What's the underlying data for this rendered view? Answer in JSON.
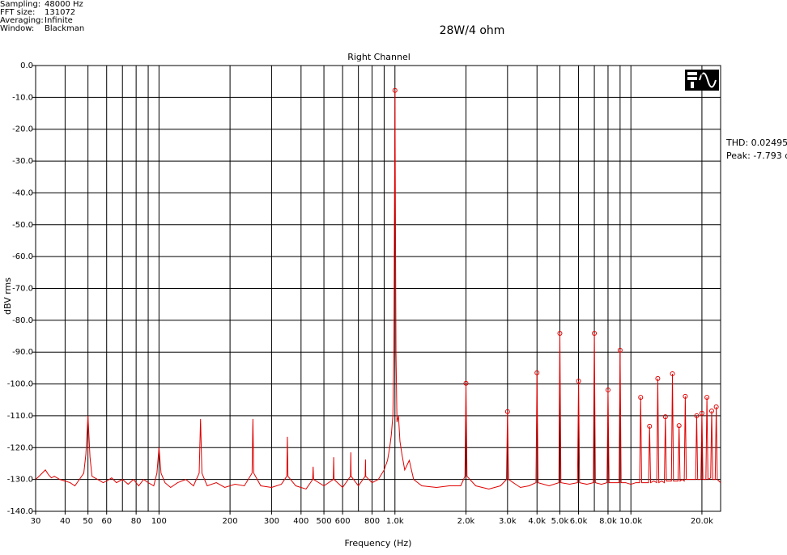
{
  "chart_data": {
    "type": "line",
    "title": "Right Channel",
    "subtitle": "28W/4 ohm",
    "info": [
      {
        "label": "Sampling:",
        "value": "48000 Hz"
      },
      {
        "label": "FFT size:",
        "value": "131072"
      },
      {
        "label": "Averaging:",
        "value": "Infinite"
      },
      {
        "label": "Window:",
        "value": "Blackman"
      }
    ],
    "annotations": [
      "THD: 0.02495",
      "Peak: -7.793 d"
    ],
    "xlabel": "Frequency (Hz)",
    "ylabel": "dBV rms",
    "xscale": "log",
    "grid": true,
    "xlim": [
      30,
      24000
    ],
    "ylim": [
      -140,
      0
    ],
    "xticks": [
      30,
      40,
      50,
      60,
      80,
      100,
      200,
      300,
      400,
      500,
      600,
      800,
      {
        "value": 1000,
        "label": "1.0k"
      },
      {
        "value": 2000,
        "label": "2.0k"
      },
      {
        "value": 3000,
        "label": "3.0k"
      },
      {
        "value": 4000,
        "label": "4.0k"
      },
      {
        "value": 5000,
        "label": "5.0k"
      },
      {
        "value": 6000,
        "label": "6.0k"
      },
      {
        "value": 8000,
        "label": "8.0k"
      },
      {
        "value": 10000,
        "label": "10.0k"
      },
      {
        "value": 20000,
        "label": "20.0k"
      }
    ],
    "xgrid_extra": [
      70,
      90,
      700,
      900,
      7000,
      9000
    ],
    "yticks": [
      {
        "value": 0,
        "label": "0.0"
      },
      {
        "value": -10,
        "label": "-10.0"
      },
      {
        "value": -20,
        "label": "-20.0"
      },
      {
        "value": -30,
        "label": "-30.0"
      },
      {
        "value": -40,
        "label": "-40.0"
      },
      {
        "value": -50,
        "label": "-50.0"
      },
      {
        "value": -60,
        "label": "-60.0"
      },
      {
        "value": -70,
        "label": "-70.0"
      },
      {
        "value": -80,
        "label": "-80.0"
      },
      {
        "value": -90,
        "label": "-90.0"
      },
      {
        "value": -100,
        "label": "-100.0"
      },
      {
        "value": -110,
        "label": "-110.0"
      },
      {
        "value": -120,
        "label": "-120.0"
      },
      {
        "value": -130,
        "label": "-130.0"
      },
      {
        "value": -140,
        "label": "-140.0"
      }
    ],
    "series": [
      {
        "color": "#e00000",
        "x": [
          30,
          31,
          32,
          33,
          34,
          35,
          36,
          38,
          40,
          42,
          44,
          46,
          48,
          49,
          50,
          51,
          52,
          55,
          58,
          60,
          63,
          66,
          70,
          74,
          78,
          82,
          86,
          90,
          95,
          98,
          100,
          102,
          106,
          112,
          120,
          130,
          140,
          148,
          150,
          152,
          160,
          175,
          190,
          210,
          230,
          248,
          250,
          252,
          270,
          300,
          330,
          348,
          350,
          352,
          380,
          420,
          448,
          450,
          452,
          500,
          548,
          550,
          552,
          600,
          648,
          650,
          652,
          700,
          748,
          750,
          752,
          800,
          850,
          900,
          930,
          950,
          965,
          980,
          990,
          1000,
          1010,
          1020,
          1035,
          1050,
          1070,
          1100,
          1150,
          1200,
          1300,
          1500,
          1700,
          1900,
          1980,
          2000,
          2020,
          2200,
          2500,
          2800,
          2970,
          3000,
          3030,
          3400,
          3700,
          3960,
          4000,
          4040,
          4500,
          4950,
          5000,
          5050,
          5500,
          5940,
          6000,
          6060,
          6500,
          6930,
          7000,
          7070,
          7500,
          7920,
          8000,
          8080,
          8500,
          8910,
          9000,
          9090,
          9500,
          10000,
          10500,
          10890,
          11000,
          11110,
          11500,
          11880,
          12000,
          12120,
          12500,
          12870,
          13000,
          13130,
          13500,
          13860,
          14000,
          14140,
          14500,
          14850,
          15000,
          15150,
          15500,
          15840,
          16000,
          16160,
          16500,
          16830,
          17000,
          17170,
          18000,
          18810,
          19000,
          19190,
          19800,
          20000,
          20200,
          20790,
          21000,
          21210,
          21780,
          22000,
          22220,
          22770,
          23000,
          23230,
          24000
        ],
        "values": [
          -130,
          -129,
          -128,
          -127,
          -128.5,
          -129.5,
          -129,
          -130,
          -130.5,
          -131,
          -132,
          -130,
          -128,
          -122,
          -110,
          -123,
          -129,
          -130,
          -131,
          -130.5,
          -129.5,
          -131,
          -130,
          -131.5,
          -130,
          -132,
          -130,
          -131,
          -132,
          -128,
          -120,
          -128,
          -131,
          -132.5,
          -131,
          -130,
          -132,
          -128,
          -111,
          -128,
          -132,
          -131,
          -132.5,
          -131.5,
          -132,
          -128,
          -111,
          -128,
          -132,
          -132.5,
          -131.5,
          -129,
          -116.6,
          -129,
          -132,
          -133,
          -130,
          -126,
          -130,
          -132,
          -130,
          -123,
          -130,
          -132.5,
          -129,
          -121.5,
          -129,
          -132,
          -129,
          -123.7,
          -129,
          -131,
          -130,
          -127,
          -124,
          -120,
          -116,
          -110,
          -90,
          -7.8,
          -90,
          -112,
          -110,
          -118,
          -122,
          -127,
          -124,
          -130,
          -132,
          -132.5,
          -132,
          -132,
          -129,
          -99.8,
          -129,
          -132,
          -133,
          -132,
          -130,
          -108.7,
          -130,
          -132.5,
          -132,
          -131,
          -96.5,
          -131,
          -132,
          -131,
          -84.1,
          -131,
          -131.5,
          -131,
          -99.1,
          -131,
          -131.5,
          -131,
          -84.1,
          -131,
          -131.5,
          -131,
          -101.9,
          -131,
          -131,
          -131,
          -89.4,
          -131,
          -131,
          -131.5,
          -131,
          -131,
          -104.2,
          -131,
          -131,
          -131,
          -113.3,
          -131,
          -130.5,
          -131,
          -98.3,
          -131,
          -130.5,
          -131,
          -110.3,
          -130.5,
          -130.5,
          -130.5,
          -96.8,
          -130.5,
          -130.5,
          -130.5,
          -113.1,
          -130.5,
          -130,
          -130.5,
          -103.9,
          -130,
          -130,
          -130,
          -110,
          -130,
          -130,
          -109.2,
          -130,
          -130,
          -104.2,
          -130,
          -129.5,
          -108.5,
          -130,
          -130,
          -107.2,
          -130,
          -131
        ]
      },
      {
        "color": "#e00000",
        "marker": "circle",
        "x": [
          1000,
          2000,
          3000,
          4000,
          5000,
          6000,
          7000,
          8000,
          9000,
          11000,
          12000,
          13000,
          14000,
          15000,
          16000,
          17000,
          19000,
          20000,
          21000,
          22000,
          23000
        ],
        "values": [
          -7.8,
          -99.8,
          -108.7,
          -96.5,
          -84.1,
          -99.1,
          -84.1,
          -101.9,
          -89.4,
          -104.2,
          -113.3,
          -98.3,
          -110.3,
          -96.8,
          -113.1,
          -103.9,
          -110,
          -109.2,
          -104.2,
          -108.5,
          -107.2
        ]
      }
    ]
  }
}
